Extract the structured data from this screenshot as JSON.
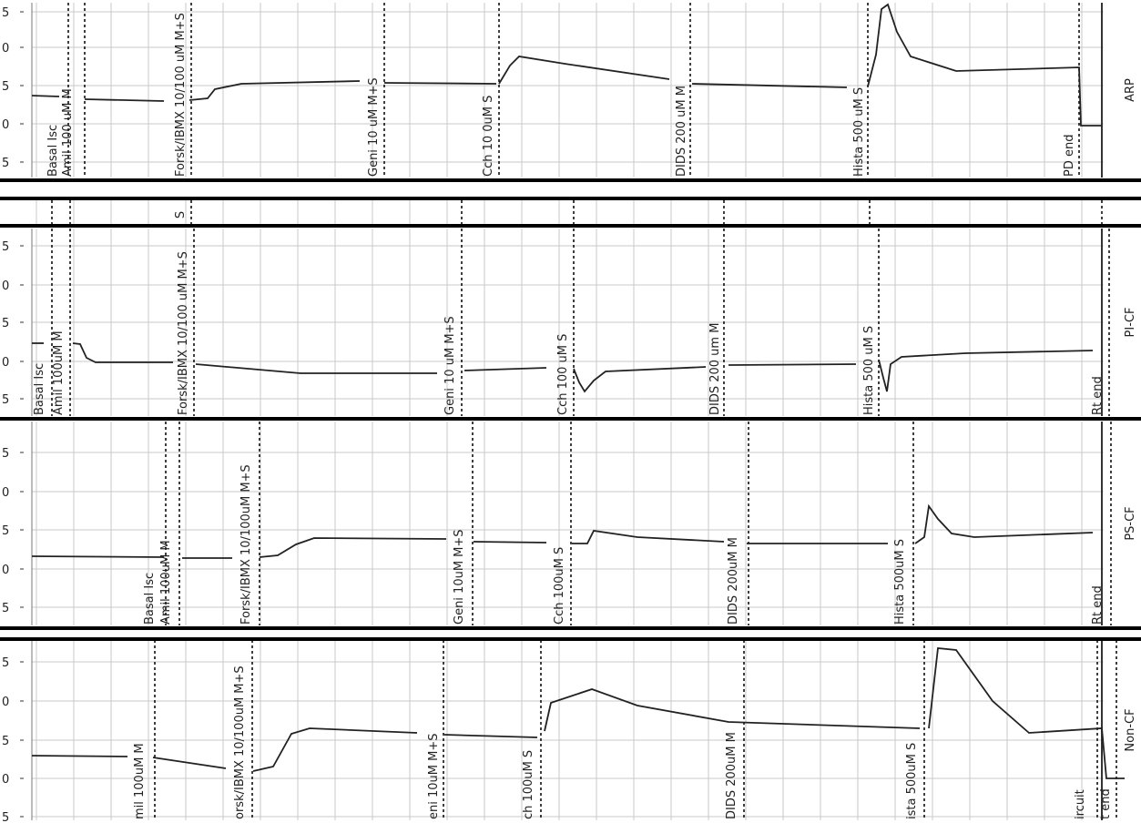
{
  "panels": [
    {
      "label": "ARP",
      "y_labels": [
        "5",
        "0",
        "5",
        "0",
        "5"
      ],
      "events": [
        "Basal Isc",
        "Amil 100 uM M",
        "Forsk/IBMX 10/100 uM M+S",
        "Geni 10 uM M+S",
        "Cch 10 0uM S",
        "DIDS 200 uM M",
        "Hista 500 uM S",
        "PD end"
      ]
    },
    {
      "label": "PI-CF",
      "y_labels": [
        "5",
        "0",
        "5",
        "0",
        "5"
      ],
      "events": [
        "Basal Isc",
        "Amil 100uM M",
        "Forsk/IBMX 10/100 uM M+S",
        "Geni 10 uM M+S",
        "Cch 100 uM S",
        "DIDS 200 um M",
        "Hista 500 uM S",
        "Rt end"
      ]
    },
    {
      "label": "PS-CF",
      "y_labels": [
        "5",
        "0",
        "5",
        "0",
        "5"
      ],
      "events": [
        "Basal Isc",
        "Amil 100uM M",
        "Forsk/IBMX 10/100uM M+S",
        "Geni 10uM M+S",
        "Cch 100uM S",
        "DIDS 200uM M",
        "Hista 500uM S",
        "Rt end"
      ]
    },
    {
      "label": "Non-CF",
      "y_labels": [
        "5",
        "0",
        "5",
        "0",
        "5"
      ],
      "events": [
        "mil 100uM M",
        "orsk/IBMX 10/100uM M+S",
        "eni 10uM M+S",
        "ch 100uM S",
        "DIDS 200uM M",
        "ista 500uM S",
        "ircuit",
        "t end"
      ]
    }
  ],
  "strip": {
    "label": "S"
  }
}
